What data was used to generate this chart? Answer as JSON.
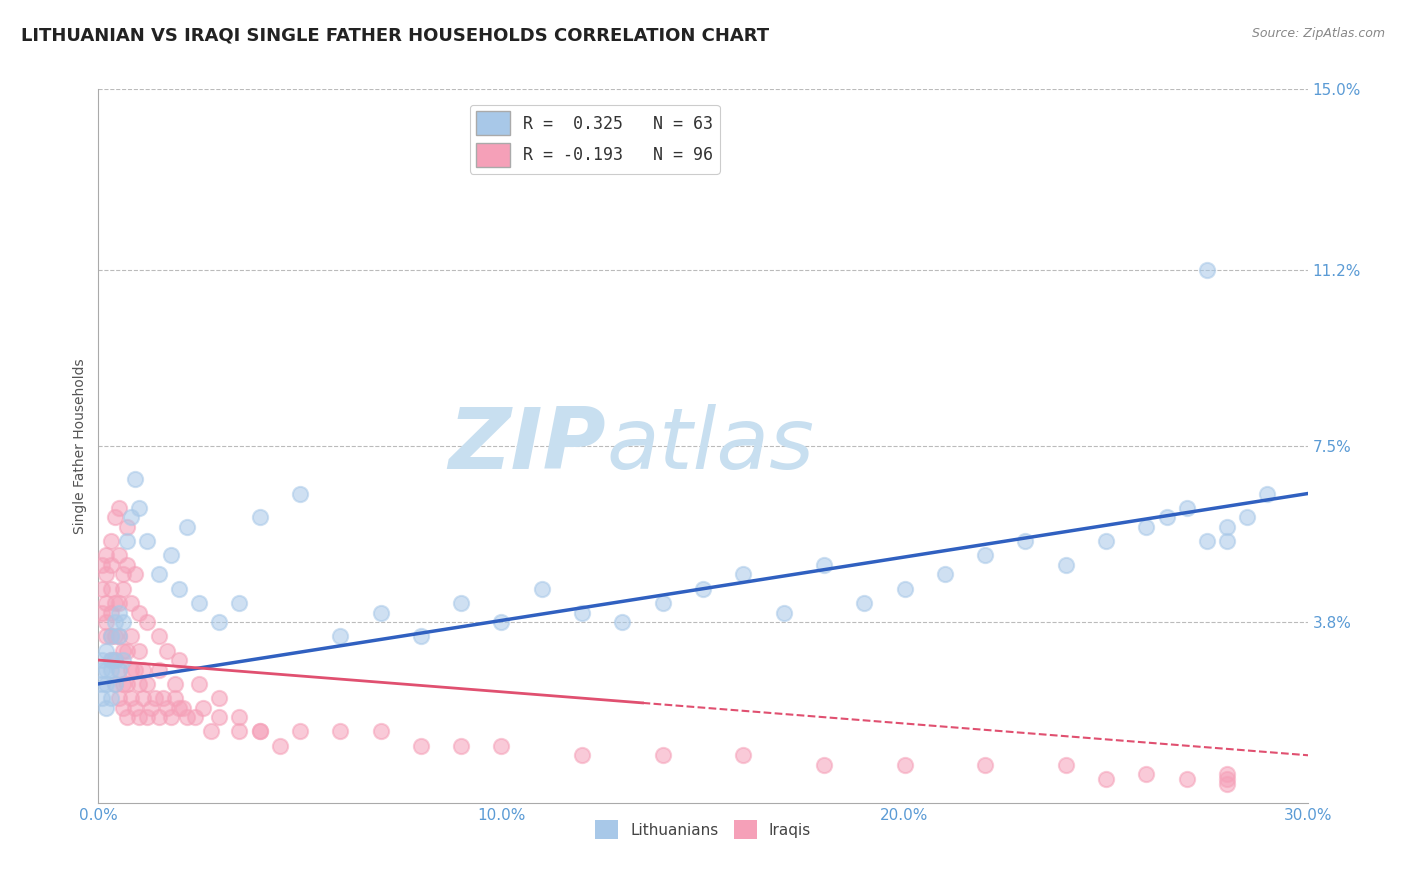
{
  "title": "LITHUANIAN VS IRAQI SINGLE FATHER HOUSEHOLDS CORRELATION CHART",
  "source": "Source: ZipAtlas.com",
  "ylabel": "Single Father Households",
  "xlim": [
    0.0,
    0.3
  ],
  "ylim": [
    0.0,
    0.15
  ],
  "xticks": [
    0.0,
    0.1,
    0.2,
    0.3
  ],
  "xticklabels": [
    "0.0%",
    "10.0%",
    "20.0%",
    "30.0%"
  ],
  "yticks": [
    0.0,
    0.038,
    0.075,
    0.112,
    0.15
  ],
  "yticklabels": [
    "",
    "3.8%",
    "7.5%",
    "11.2%",
    "15.0%"
  ],
  "legend_r1": "R =  0.325   N = 63",
  "legend_r2": "R = -0.193   N = 96",
  "color_blue": "#A8C8E8",
  "color_pink": "#F5A0B8",
  "color_blue_line": "#3060C0",
  "color_pink_line": "#E05070",
  "watermark_zip": "ZIP",
  "watermark_atlas": "atlas",
  "watermark_color": "#C8DFF0",
  "background_color": "#FFFFFF",
  "grid_color": "#BBBBBB",
  "tick_color": "#5B9BD5",
  "title_fontsize": 13,
  "scatter_size": 120,
  "scatter_alpha_fill": 0.25,
  "scatter_alpha_edge": 0.7,
  "lith_blue_line_start_y": 0.025,
  "lith_blue_line_end_y": 0.065,
  "iraq_pink_line_start_y": 0.03,
  "iraq_pink_line_end_y": 0.01,
  "lith_x": [
    0.001,
    0.001,
    0.001,
    0.001,
    0.002,
    0.002,
    0.002,
    0.002,
    0.003,
    0.003,
    0.003,
    0.003,
    0.004,
    0.004,
    0.004,
    0.005,
    0.005,
    0.005,
    0.006,
    0.006,
    0.007,
    0.008,
    0.009,
    0.01,
    0.012,
    0.015,
    0.018,
    0.02,
    0.022,
    0.025,
    0.03,
    0.035,
    0.04,
    0.05,
    0.06,
    0.07,
    0.08,
    0.09,
    0.1,
    0.11,
    0.12,
    0.13,
    0.14,
    0.15,
    0.16,
    0.17,
    0.18,
    0.19,
    0.2,
    0.21,
    0.22,
    0.23,
    0.24,
    0.25,
    0.26,
    0.265,
    0.27,
    0.275,
    0.28,
    0.285,
    0.29,
    0.275,
    0.28
  ],
  "lith_y": [
    0.022,
    0.025,
    0.028,
    0.03,
    0.02,
    0.025,
    0.028,
    0.032,
    0.022,
    0.028,
    0.03,
    0.035,
    0.025,
    0.03,
    0.038,
    0.028,
    0.035,
    0.04,
    0.03,
    0.038,
    0.055,
    0.06,
    0.068,
    0.062,
    0.055,
    0.048,
    0.052,
    0.045,
    0.058,
    0.042,
    0.038,
    0.042,
    0.06,
    0.065,
    0.035,
    0.04,
    0.035,
    0.042,
    0.038,
    0.045,
    0.04,
    0.038,
    0.042,
    0.045,
    0.048,
    0.04,
    0.05,
    0.042,
    0.045,
    0.048,
    0.052,
    0.055,
    0.05,
    0.055,
    0.058,
    0.06,
    0.062,
    0.055,
    0.058,
    0.06,
    0.065,
    0.112,
    0.055
  ],
  "iraq_x": [
    0.001,
    0.001,
    0.001,
    0.002,
    0.002,
    0.002,
    0.002,
    0.002,
    0.003,
    0.003,
    0.003,
    0.003,
    0.003,
    0.004,
    0.004,
    0.004,
    0.004,
    0.005,
    0.005,
    0.005,
    0.005,
    0.006,
    0.006,
    0.006,
    0.007,
    0.007,
    0.007,
    0.008,
    0.008,
    0.008,
    0.009,
    0.009,
    0.01,
    0.01,
    0.01,
    0.011,
    0.011,
    0.012,
    0.012,
    0.013,
    0.014,
    0.015,
    0.016,
    0.017,
    0.018,
    0.019,
    0.02,
    0.022,
    0.024,
    0.026,
    0.028,
    0.03,
    0.035,
    0.04,
    0.05,
    0.06,
    0.07,
    0.08,
    0.09,
    0.1,
    0.12,
    0.14,
    0.16,
    0.18,
    0.2,
    0.22,
    0.24,
    0.25,
    0.26,
    0.27,
    0.28,
    0.28,
    0.28,
    0.005,
    0.006,
    0.007,
    0.003,
    0.004,
    0.005,
    0.006,
    0.007,
    0.008,
    0.009,
    0.01,
    0.012,
    0.015,
    0.02,
    0.025,
    0.03,
    0.035,
    0.04,
    0.045,
    0.015,
    0.017,
    0.019,
    0.021
  ],
  "iraq_y": [
    0.04,
    0.045,
    0.05,
    0.035,
    0.038,
    0.042,
    0.048,
    0.052,
    0.03,
    0.035,
    0.04,
    0.045,
    0.05,
    0.025,
    0.03,
    0.035,
    0.042,
    0.022,
    0.028,
    0.035,
    0.042,
    0.02,
    0.025,
    0.032,
    0.018,
    0.025,
    0.032,
    0.022,
    0.028,
    0.035,
    0.02,
    0.028,
    0.018,
    0.025,
    0.032,
    0.022,
    0.028,
    0.018,
    0.025,
    0.02,
    0.022,
    0.018,
    0.022,
    0.02,
    0.018,
    0.022,
    0.02,
    0.018,
    0.018,
    0.02,
    0.015,
    0.018,
    0.015,
    0.015,
    0.015,
    0.015,
    0.015,
    0.012,
    0.012,
    0.012,
    0.01,
    0.01,
    0.01,
    0.008,
    0.008,
    0.008,
    0.008,
    0.005,
    0.006,
    0.005,
    0.005,
    0.006,
    0.004,
    0.052,
    0.048,
    0.058,
    0.055,
    0.06,
    0.062,
    0.045,
    0.05,
    0.042,
    0.048,
    0.04,
    0.038,
    0.035,
    0.03,
    0.025,
    0.022,
    0.018,
    0.015,
    0.012,
    0.028,
    0.032,
    0.025,
    0.02
  ]
}
